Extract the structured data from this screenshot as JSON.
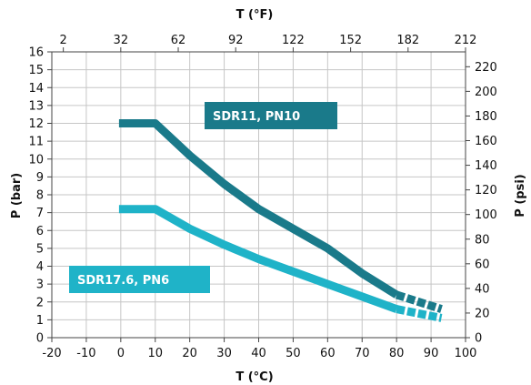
{
  "chart_data": {
    "type": "line",
    "xlabel": "T (°C)",
    "x2label": "T (°F)",
    "ylabel": "P (bar)",
    "y2label": "P (psi)",
    "xlim": [
      -20,
      100
    ],
    "ylim": [
      0,
      16
    ],
    "x2lim": [
      -4,
      212
    ],
    "y2lim": [
      0,
      232.06
    ],
    "x_ticks": [
      "-20",
      "-10",
      "0",
      "10",
      "20",
      "30",
      "40",
      "50",
      "60",
      "70",
      "80",
      "90",
      "100"
    ],
    "y_ticks": [
      "0",
      "1",
      "2",
      "3",
      "4",
      "5",
      "6",
      "7",
      "8",
      "9",
      "10",
      "11",
      "12",
      "13",
      "14",
      "15",
      "16"
    ],
    "x2_ticks": [
      "2",
      "32",
      "62",
      "92",
      "122",
      "152",
      "182",
      "212"
    ],
    "y2_ticks": [
      "0",
      "20",
      "40",
      "60",
      "80",
      "100",
      "120",
      "140",
      "160",
      "180",
      "200",
      "220"
    ],
    "grid": true,
    "series": [
      {
        "name": "SDR11, PN10",
        "color": "#1a7a8a",
        "solid": [
          [
            -0.5,
            12
          ],
          [
            10,
            12
          ],
          [
            20,
            10.2
          ],
          [
            30,
            8.6
          ],
          [
            40,
            7.2
          ],
          [
            50,
            6.1
          ],
          [
            60,
            5.0
          ],
          [
            70,
            3.6
          ],
          [
            80,
            2.4
          ]
        ],
        "dashed": [
          [
            80,
            2.4
          ],
          [
            93,
            1.6
          ]
        ]
      },
      {
        "name": "SDR17.6, PN6",
        "color": "#1fb3c8",
        "solid": [
          [
            -0.5,
            7.2
          ],
          [
            10,
            7.2
          ],
          [
            20,
            6.1
          ],
          [
            30,
            5.2
          ],
          [
            40,
            4.4
          ],
          [
            50,
            3.7
          ],
          [
            60,
            3.0
          ],
          [
            70,
            2.3
          ],
          [
            80,
            1.6
          ]
        ],
        "dashed": [
          [
            80,
            1.6
          ],
          [
            93,
            1.1
          ]
        ]
      }
    ]
  }
}
